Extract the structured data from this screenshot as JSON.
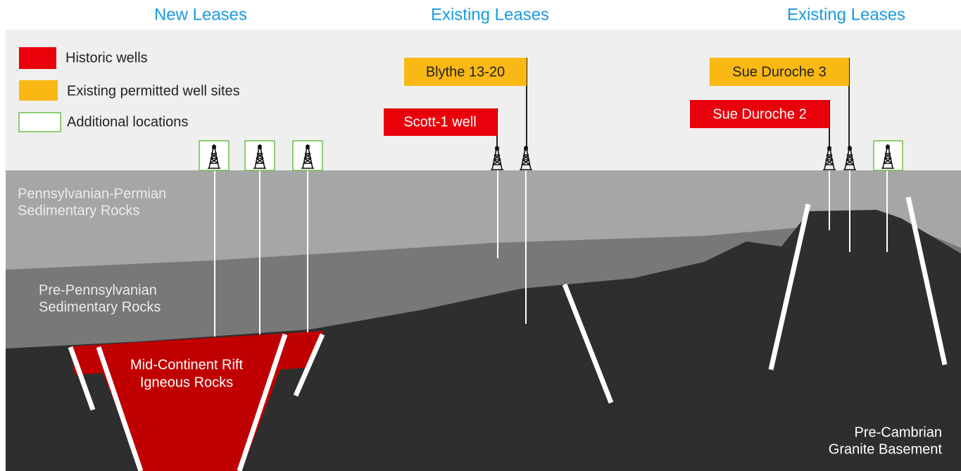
{
  "headers": [
    "New Leases",
    "Existing Leases",
    "Existing Leases"
  ],
  "legend": [
    "Historic wells",
    "Existing permitted well sites",
    "Additional locations"
  ],
  "wells": [
    "Blythe 13-20",
    "Scott-1 well",
    "Sue Duroche 3",
    "Sue Duroche 2"
  ],
  "layers": [
    [
      "Pennsylvanian-Permian",
      "Sedimentary Rocks"
    ],
    [
      "Pre-Pennsylvanian",
      "Sedimentary Rocks"
    ],
    [
      "Mid-Continent Rift",
      "Igneous Rocks"
    ],
    [
      "Pre-Cambrian",
      "Granite Basement"
    ]
  ]
}
